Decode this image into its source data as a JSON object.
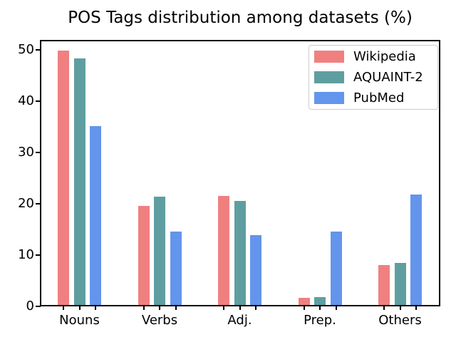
{
  "chart_data": {
    "type": "bar",
    "title": "POS Tags distribution among datasets (%)",
    "categories": [
      "Nouns",
      "Verbs",
      "Adj.",
      "Prep.",
      "Others"
    ],
    "series": [
      {
        "name": "Wikipedia",
        "color": "#F08080",
        "values": [
          49.8,
          19.6,
          21.5,
          1.7,
          8.0
        ]
      },
      {
        "name": "AQUAINT-2",
        "color": "#5F9EA0",
        "values": [
          48.3,
          21.4,
          20.6,
          1.8,
          8.5
        ]
      },
      {
        "name": "PubMed",
        "color": "#6495ED",
        "values": [
          35.2,
          14.6,
          13.9,
          14.6,
          21.8
        ]
      }
    ],
    "xlabel": "",
    "ylabel": "",
    "ylim": [
      0,
      51.8
    ],
    "yticks": [
      0,
      10,
      20,
      30,
      40,
      50
    ],
    "grid": false,
    "legend": {
      "position": "upper right",
      "entries": [
        "Wikipedia",
        "AQUAINT-2",
        "PubMed"
      ]
    },
    "axis_color": "#000000",
    "background_color": "#ffffff",
    "legend_border_color": "#cccccc"
  }
}
